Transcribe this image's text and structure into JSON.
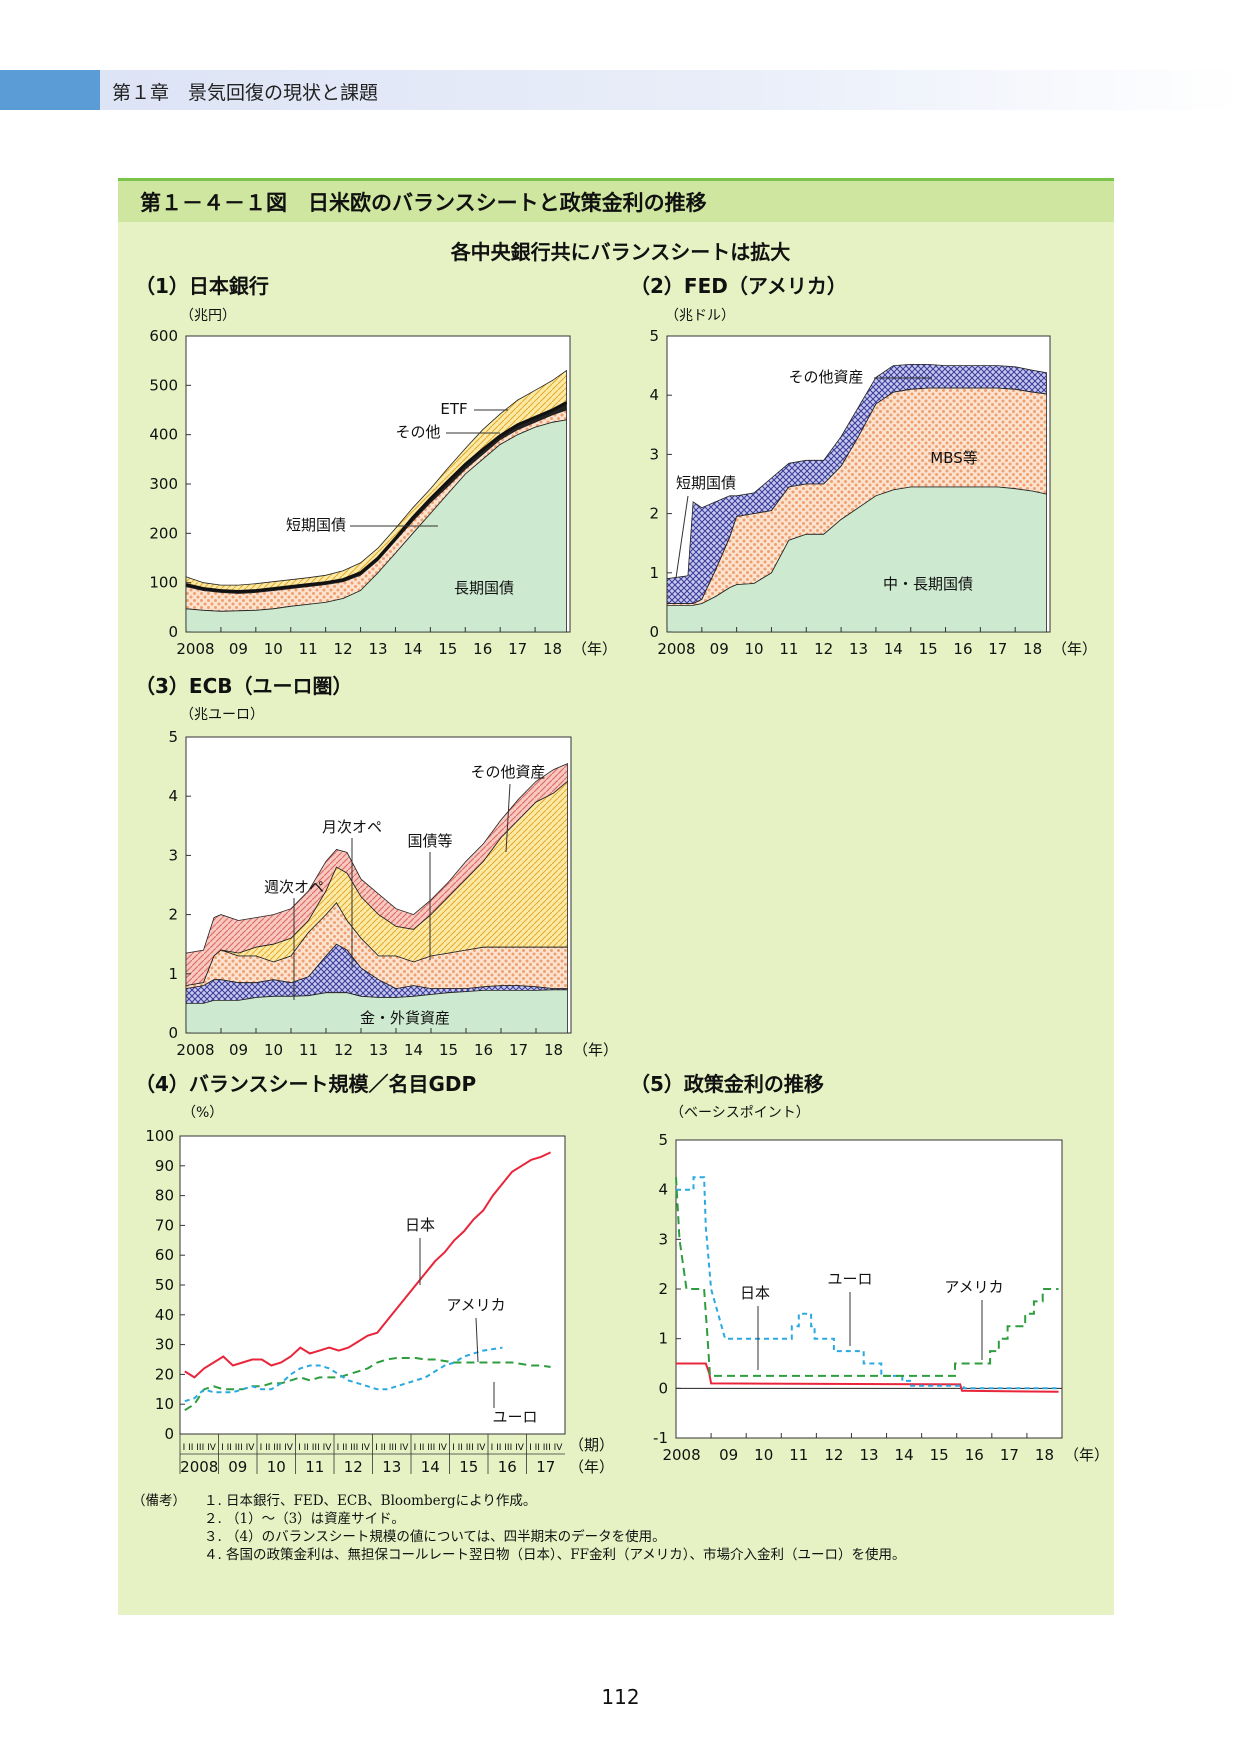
{
  "header": {
    "chapter": "第１章　景気回復の現状と課題"
  },
  "panel_title": "第１－４－１図　日米欧のバランスシートと政策金利の推移",
  "subtitle": "各中央銀行共にバランスシートは拡大",
  "page_number": "112",
  "colors": {
    "long": "#cde9cf",
    "dots": "#f0a070",
    "yellow": "#f5d76a",
    "hatch": "#e0706a",
    "navy": "#3b3f9a",
    "red": "#e8253b",
    "green": "#2e9d3e",
    "cyan": "#29a9e0"
  },
  "chart_data": [
    {
      "id": "boj",
      "type": "area",
      "title": "（1）日本銀行",
      "ylabel": "（兆円）",
      "x_ticks": [
        "2008",
        "09",
        "10",
        "11",
        "12",
        "13",
        "14",
        "15",
        "16",
        "17",
        "18"
      ],
      "x_suffix": "（年）",
      "ylim": [
        0,
        600
      ],
      "y_ticks": [
        0,
        100,
        200,
        300,
        400,
        500,
        600
      ],
      "x": [
        2008.0,
        2008.5,
        2009,
        2009.5,
        2010,
        2010.5,
        2011,
        2011.5,
        2012,
        2012.5,
        2013,
        2013.5,
        2014,
        2014.5,
        2015,
        2015.5,
        2016,
        2016.5,
        2017,
        2017.5,
        2018,
        2018.5,
        2018.9
      ],
      "series": [
        {
          "name": "長期国債",
          "values": [
            47,
            44,
            42,
            43,
            44,
            47,
            52,
            56,
            60,
            68,
            84,
            120,
            160,
            200,
            240,
            280,
            320,
            350,
            380,
            400,
            415,
            425,
            430
          ]
        },
        {
          "name": "短期国債",
          "values": [
            92,
            84,
            80,
            78,
            80,
            84,
            88,
            92,
            96,
            102,
            115,
            145,
            185,
            225,
            262,
            295,
            330,
            360,
            390,
            410,
            425,
            440,
            450
          ]
        },
        {
          "name": "その他",
          "values": [
            96,
            88,
            84,
            82,
            84,
            88,
            92,
            96,
            100,
            106,
            120,
            150,
            190,
            232,
            270,
            305,
            340,
            370,
            398,
            420,
            435,
            450,
            465
          ]
        },
        {
          "name": "ETF",
          "values": [
            112,
            100,
            95,
            95,
            98,
            102,
            106,
            110,
            115,
            124,
            140,
            170,
            210,
            252,
            290,
            332,
            372,
            410,
            442,
            470,
            490,
            510,
            530
          ]
        }
      ],
      "labels": [
        "長期国債",
        "短期国債",
        "その他",
        "ETF"
      ]
    },
    {
      "id": "fed",
      "type": "area",
      "title": "（2）FED（アメリカ）",
      "ylabel": "（兆ドル）",
      "x_ticks": [
        "2008",
        "09",
        "10",
        "11",
        "12",
        "13",
        "14",
        "15",
        "16",
        "17",
        "18"
      ],
      "x_suffix": "（年）",
      "ylim": [
        0,
        5
      ],
      "y_ticks": [
        0,
        1,
        2,
        3,
        4,
        5
      ],
      "x": [
        2008.0,
        2008.6,
        2008.75,
        2009,
        2009.4,
        2009.8,
        2010,
        2010.5,
        2011,
        2011.5,
        2012,
        2012.5,
        2013,
        2013.5,
        2014,
        2014.5,
        2015,
        2015.5,
        2016,
        2016.5,
        2017,
        2017.5,
        2018,
        2018.5,
        2018.9
      ],
      "series": [
        {
          "name": "中・長期国債",
          "values": [
            0.45,
            0.45,
            0.45,
            0.48,
            0.6,
            0.75,
            0.8,
            0.82,
            1.0,
            1.55,
            1.65,
            1.65,
            1.9,
            2.1,
            2.3,
            2.4,
            2.45,
            2.45,
            2.45,
            2.45,
            2.45,
            2.45,
            2.42,
            2.38,
            2.33
          ]
        },
        {
          "name": "MBS等",
          "values": [
            0.48,
            0.48,
            0.48,
            0.55,
            1.05,
            1.6,
            1.95,
            2.0,
            2.05,
            2.45,
            2.5,
            2.5,
            2.8,
            3.3,
            3.85,
            4.05,
            4.1,
            4.12,
            4.12,
            4.12,
            4.12,
            4.12,
            4.1,
            4.05,
            4.02
          ]
        },
        {
          "name": "短期国債",
          "values": [
            0.48,
            0.48,
            0.48,
            0.55,
            1.05,
            1.6,
            1.95,
            2.0,
            2.05,
            2.45,
            2.5,
            2.5,
            2.8,
            3.3,
            3.85,
            4.05,
            4.1,
            4.12,
            4.12,
            4.12,
            4.12,
            4.12,
            4.1,
            4.05,
            4.02
          ]
        },
        {
          "name": "その他資産",
          "values": [
            0.9,
            0.95,
            2.2,
            2.1,
            2.2,
            2.3,
            2.3,
            2.35,
            2.6,
            2.85,
            2.9,
            2.9,
            3.3,
            3.8,
            4.3,
            4.5,
            4.52,
            4.52,
            4.5,
            4.5,
            4.5,
            4.5,
            4.48,
            4.42,
            4.38
          ]
        }
      ],
      "labels": [
        "その他資産",
        "MBS等",
        "短期国債",
        "中・長期国債"
      ]
    },
    {
      "id": "ecb",
      "type": "area",
      "title": "（3）ECB（ユーロ圏）",
      "ylabel": "（兆ユーロ）",
      "x_ticks": [
        "2008",
        "09",
        "10",
        "11",
        "12",
        "13",
        "14",
        "15",
        "16",
        "17",
        "18"
      ],
      "x_suffix": "（年）",
      "ylim": [
        0,
        5
      ],
      "y_ticks": [
        0,
        1,
        2,
        3,
        4,
        5
      ],
      "x": [
        2008.0,
        2008.5,
        2008.8,
        2009,
        2009.5,
        2010,
        2010.5,
        2011,
        2011.5,
        2012,
        2012.3,
        2012.6,
        2013,
        2013.5,
        2014,
        2014.5,
        2015,
        2015.5,
        2016,
        2016.5,
        2017,
        2017.5,
        2018,
        2018.5,
        2018.9
      ],
      "series": [
        {
          "name": "金・外貨資産",
          "values": [
            0.5,
            0.5,
            0.55,
            0.55,
            0.55,
            0.6,
            0.62,
            0.62,
            0.63,
            0.68,
            0.68,
            0.68,
            0.62,
            0.6,
            0.6,
            0.62,
            0.65,
            0.68,
            0.7,
            0.72,
            0.72,
            0.72,
            0.72,
            0.73,
            0.73
          ]
        },
        {
          "name": "月次オペ",
          "values": [
            0.75,
            0.8,
            0.9,
            0.9,
            0.85,
            0.85,
            0.9,
            0.85,
            0.95,
            1.3,
            1.5,
            1.4,
            1.1,
            0.9,
            0.75,
            0.8,
            0.75,
            0.75,
            0.75,
            0.78,
            0.8,
            0.8,
            0.78,
            0.75,
            0.75
          ]
        },
        {
          "name": "週次オペ",
          "values": [
            0.8,
            0.85,
            1.3,
            1.4,
            1.3,
            1.3,
            1.2,
            1.3,
            1.7,
            2.0,
            2.2,
            1.9,
            1.6,
            1.3,
            1.3,
            1.2,
            1.3,
            1.35,
            1.4,
            1.45,
            1.45,
            1.45,
            1.45,
            1.45,
            1.45
          ]
        },
        {
          "name": "国債等",
          "values": [
            0.8,
            0.85,
            1.3,
            1.4,
            1.35,
            1.45,
            1.5,
            1.6,
            1.9,
            2.4,
            2.8,
            2.7,
            2.3,
            2.0,
            1.8,
            1.75,
            2.0,
            2.3,
            2.6,
            2.9,
            3.3,
            3.6,
            3.9,
            4.05,
            4.25
          ]
        },
        {
          "name": "その他資産",
          "values": [
            1.35,
            1.4,
            1.95,
            2.0,
            1.9,
            1.95,
            2.0,
            2.1,
            2.4,
            2.9,
            3.1,
            3.05,
            2.6,
            2.35,
            2.1,
            2.0,
            2.25,
            2.55,
            2.9,
            3.2,
            3.6,
            3.95,
            4.25,
            4.45,
            4.55
          ]
        }
      ],
      "labels": [
        "その他資産",
        "月次オペ",
        "国債等",
        "週次オペ",
        "金・外貨資産"
      ]
    },
    {
      "id": "bs_gdp",
      "type": "line",
      "title": "（4）バランスシート規模／名目GDP",
      "ylabel": "（%）",
      "x_ticks": [
        "2008",
        "09",
        "10",
        "11",
        "12",
        "13",
        "14",
        "15",
        "16",
        "17"
      ],
      "x_suffix_top": "（期）",
      "x_suffix": "（年）",
      "quarter_label": "I II III IV",
      "ylim": [
        0,
        100
      ],
      "y_ticks": [
        0,
        10,
        20,
        30,
        40,
        50,
        60,
        70,
        80,
        90,
        100
      ],
      "series": [
        {
          "name": "日本",
          "color": "#e8253b",
          "values": [
            21,
            19,
            22,
            24,
            26,
            23,
            24,
            25,
            25,
            23,
            24,
            26,
            29,
            27,
            28,
            29,
            28,
            29,
            31,
            33,
            34,
            38,
            42,
            46,
            50,
            54,
            58,
            61,
            65,
            68,
            72,
            75,
            80,
            84,
            88,
            90,
            92,
            93,
            94.5
          ]
        },
        {
          "name": "アメリカ",
          "color": "#2e9d3e",
          "values": [
            8,
            10,
            15,
            16,
            15,
            15,
            15,
            16,
            16,
            17,
            17,
            18,
            19,
            18,
            19,
            19,
            19,
            20,
            21,
            22,
            24,
            25,
            25.5,
            25.5,
            25.5,
            25,
            25,
            24.5,
            24,
            24,
            24,
            24,
            24,
            24,
            24,
            23.5,
            23,
            23,
            22.5
          ]
        },
        {
          "name": "ユーロ",
          "color": "#29a9e0",
          "values": [
            11,
            12,
            15,
            14,
            14,
            14,
            15,
            16,
            15,
            15,
            17,
            20,
            22,
            23,
            23,
            22,
            20,
            18,
            17,
            16,
            15,
            15,
            16,
            17,
            18,
            19,
            21,
            23,
            24,
            26,
            27,
            28,
            28.5,
            29
          ]
        }
      ]
    },
    {
      "id": "policy_rate",
      "type": "line",
      "title": "（5）政策金利の推移",
      "ylabel": "（ベーシスポイント）",
      "x_ticks": [
        "2008",
        "09",
        "10",
        "11",
        "12",
        "13",
        "14",
        "15",
        "16",
        "17",
        "18"
      ],
      "x_suffix": "（年）",
      "ylim": [
        -1,
        5
      ],
      "y_ticks": [
        -1,
        0,
        1,
        2,
        3,
        4,
        5
      ],
      "series": [
        {
          "name": "日本",
          "color": "#e8253b",
          "points": [
            [
              2008,
              0.5
            ],
            [
              2008.85,
              0.5
            ],
            [
              2008.95,
              0.3
            ],
            [
              2009.0,
              0.1
            ],
            [
              2016.1,
              0.08
            ],
            [
              2016.15,
              -0.05
            ],
            [
              2018.9,
              -0.07
            ]
          ]
        },
        {
          "name": "ユーロ",
          "color": "#29a9e0",
          "points": [
            [
              2008,
              4.0
            ],
            [
              2008.5,
              4.0
            ],
            [
              2008.5,
              4.25
            ],
            [
              2008.8,
              4.25
            ],
            [
              2008.85,
              3.25
            ],
            [
              2009.0,
              2.0
            ],
            [
              2009.2,
              1.5
            ],
            [
              2009.4,
              1.0
            ],
            [
              2011.3,
              1.0
            ],
            [
              2011.3,
              1.25
            ],
            [
              2011.5,
              1.25
            ],
            [
              2011.5,
              1.5
            ],
            [
              2011.85,
              1.5
            ],
            [
              2011.85,
              1.25
            ],
            [
              2011.95,
              1.25
            ],
            [
              2011.95,
              1.0
            ],
            [
              2012.5,
              1.0
            ],
            [
              2012.5,
              0.75
            ],
            [
              2013.35,
              0.75
            ],
            [
              2013.35,
              0.5
            ],
            [
              2013.85,
              0.5
            ],
            [
              2013.85,
              0.25
            ],
            [
              2014.45,
              0.25
            ],
            [
              2014.45,
              0.15
            ],
            [
              2014.7,
              0.15
            ],
            [
              2014.7,
              0.05
            ],
            [
              2016.2,
              0.05
            ],
            [
              2016.2,
              0.0
            ],
            [
              2018.9,
              0.0
            ]
          ]
        },
        {
          "name": "アメリカ",
          "color": "#2e9d3e",
          "points": [
            [
              2008,
              4.25
            ],
            [
              2008.1,
              3.0
            ],
            [
              2008.3,
              2.0
            ],
            [
              2008.8,
              2.0
            ],
            [
              2008.9,
              1.0
            ],
            [
              2008.97,
              0.25
            ],
            [
              2015.95,
              0.25
            ],
            [
              2015.95,
              0.5
            ],
            [
              2016.95,
              0.5
            ],
            [
              2016.95,
              0.75
            ],
            [
              2017.2,
              0.75
            ],
            [
              2017.2,
              1.0
            ],
            [
              2017.45,
              1.0
            ],
            [
              2017.45,
              1.25
            ],
            [
              2017.95,
              1.25
            ],
            [
              2017.95,
              1.5
            ],
            [
              2018.2,
              1.5
            ],
            [
              2018.2,
              1.75
            ],
            [
              2018.45,
              1.75
            ],
            [
              2018.45,
              2.0
            ],
            [
              2018.9,
              2.0
            ]
          ]
        }
      ]
    }
  ],
  "notes": {
    "head": "（備考）",
    "items": [
      {
        "n": "１.",
        "t": "日本銀行、FED、ECB、Bloombergにより作成。"
      },
      {
        "n": "２.",
        "t": "（1）～（3）は資産サイド。"
      },
      {
        "n": "３.",
        "t": "（4）のバランスシート規模の値については、四半期末のデータを使用。"
      },
      {
        "n": "４.",
        "t": "各国の政策金利は、無担保コールレート翌日物（日本）、FF金利（アメリカ）、市場介入金利（ユーロ）を使用。"
      }
    ]
  }
}
